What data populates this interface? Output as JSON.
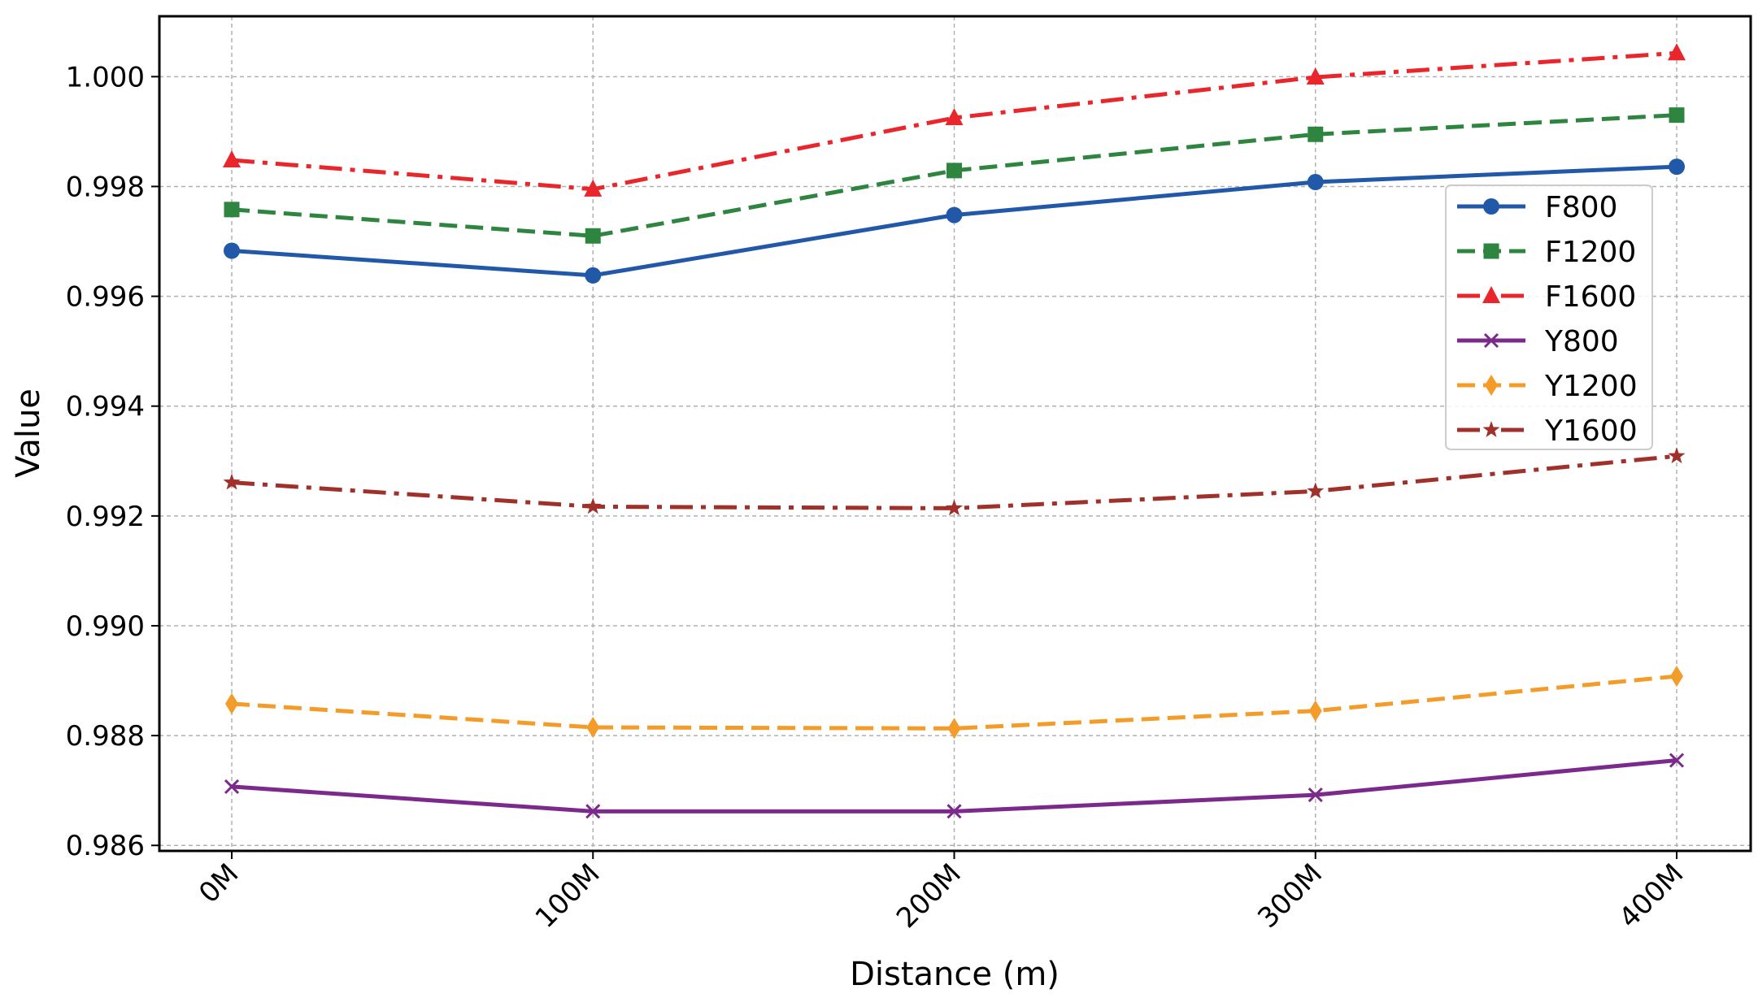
{
  "chart_data": {
    "type": "line",
    "title": "",
    "xlabel": "Distance (m)",
    "ylabel": "Value",
    "categories": [
      "0M",
      "100M",
      "200M",
      "300M",
      "400M"
    ],
    "ylim": [
      0.9859,
      1.0011
    ],
    "yticks": [
      0.986,
      0.988,
      0.99,
      0.992,
      0.994,
      0.996,
      0.998,
      1.0
    ],
    "ytick_labels": [
      "0.986",
      "0.988",
      "0.990",
      "0.992",
      "0.994",
      "0.996",
      "0.998",
      "1.000"
    ],
    "grid": true,
    "legend_position": "right",
    "series": [
      {
        "name": "F800",
        "color": "#2158a8",
        "marker": "circle",
        "dash": "solid",
        "values": [
          0.99683,
          0.99638,
          0.99748,
          0.99808,
          0.99836
        ]
      },
      {
        "name": "F1200",
        "color": "#2e8540",
        "marker": "square",
        "dash": "dashed",
        "values": [
          0.99758,
          0.9971,
          0.99829,
          0.99895,
          0.9993
        ]
      },
      {
        "name": "F1600",
        "color": "#e8262b",
        "marker": "triangle",
        "dash": "dashdot",
        "values": [
          0.99848,
          0.99795,
          0.99925,
          0.99999,
          1.00043
        ]
      },
      {
        "name": "Y800",
        "color": "#7b2a8c",
        "marker": "x",
        "dash": "solid",
        "values": [
          0.98707,
          0.98662,
          0.98662,
          0.98692,
          0.98755
        ]
      },
      {
        "name": "Y1200",
        "color": "#f39c2a",
        "marker": "diamond",
        "dash": "dashed",
        "values": [
          0.98858,
          0.98815,
          0.98813,
          0.98845,
          0.98908
        ]
      },
      {
        "name": "Y1600",
        "color": "#a0302a",
        "marker": "star",
        "dash": "dashdot",
        "values": [
          0.99261,
          0.99217,
          0.99214,
          0.99245,
          0.99309
        ]
      }
    ]
  }
}
